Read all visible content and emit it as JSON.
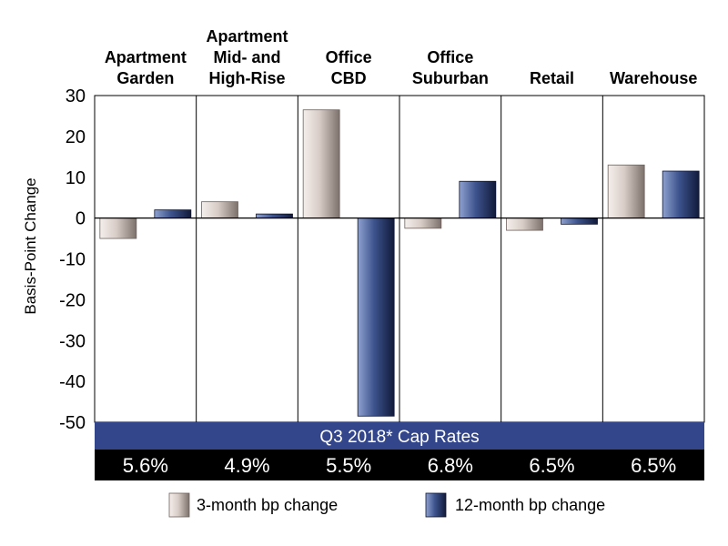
{
  "chart_data": {
    "type": "bar",
    "title": "",
    "xlabel": "",
    "ylabel": "Basis-Point Change",
    "ylim": [
      -50,
      30
    ],
    "yticks": [
      30,
      20,
      10,
      0,
      -10,
      -20,
      -30,
      -40,
      -50
    ],
    "categories": [
      [
        "Apartment",
        "Garden"
      ],
      [
        "Apartment",
        "Mid- and",
        "High-Rise"
      ],
      [
        "Office",
        "CBD"
      ],
      [
        "Office",
        "Suburban"
      ],
      [
        "Retail"
      ],
      [
        "Warehouse"
      ]
    ],
    "series": [
      {
        "name": "3-month bp change",
        "values": [
          -5,
          4,
          26.5,
          -2.5,
          -3,
          13
        ],
        "color": "#cdbfb9"
      },
      {
        "name": "12-month bp change",
        "values": [
          2,
          1,
          -48.5,
          9,
          -1.5,
          11.5
        ],
        "color": "#2c3f73"
      }
    ],
    "grid": false,
    "legend": "bottom"
  },
  "banner": {
    "label": "Q3 2018* Cap Rates",
    "color": "#33468c"
  },
  "cap_rates": [
    "5.6%",
    "4.9%",
    "5.5%",
    "6.8%",
    "6.5%",
    "6.5%"
  ],
  "cap_rates_bar_color": "#000000"
}
